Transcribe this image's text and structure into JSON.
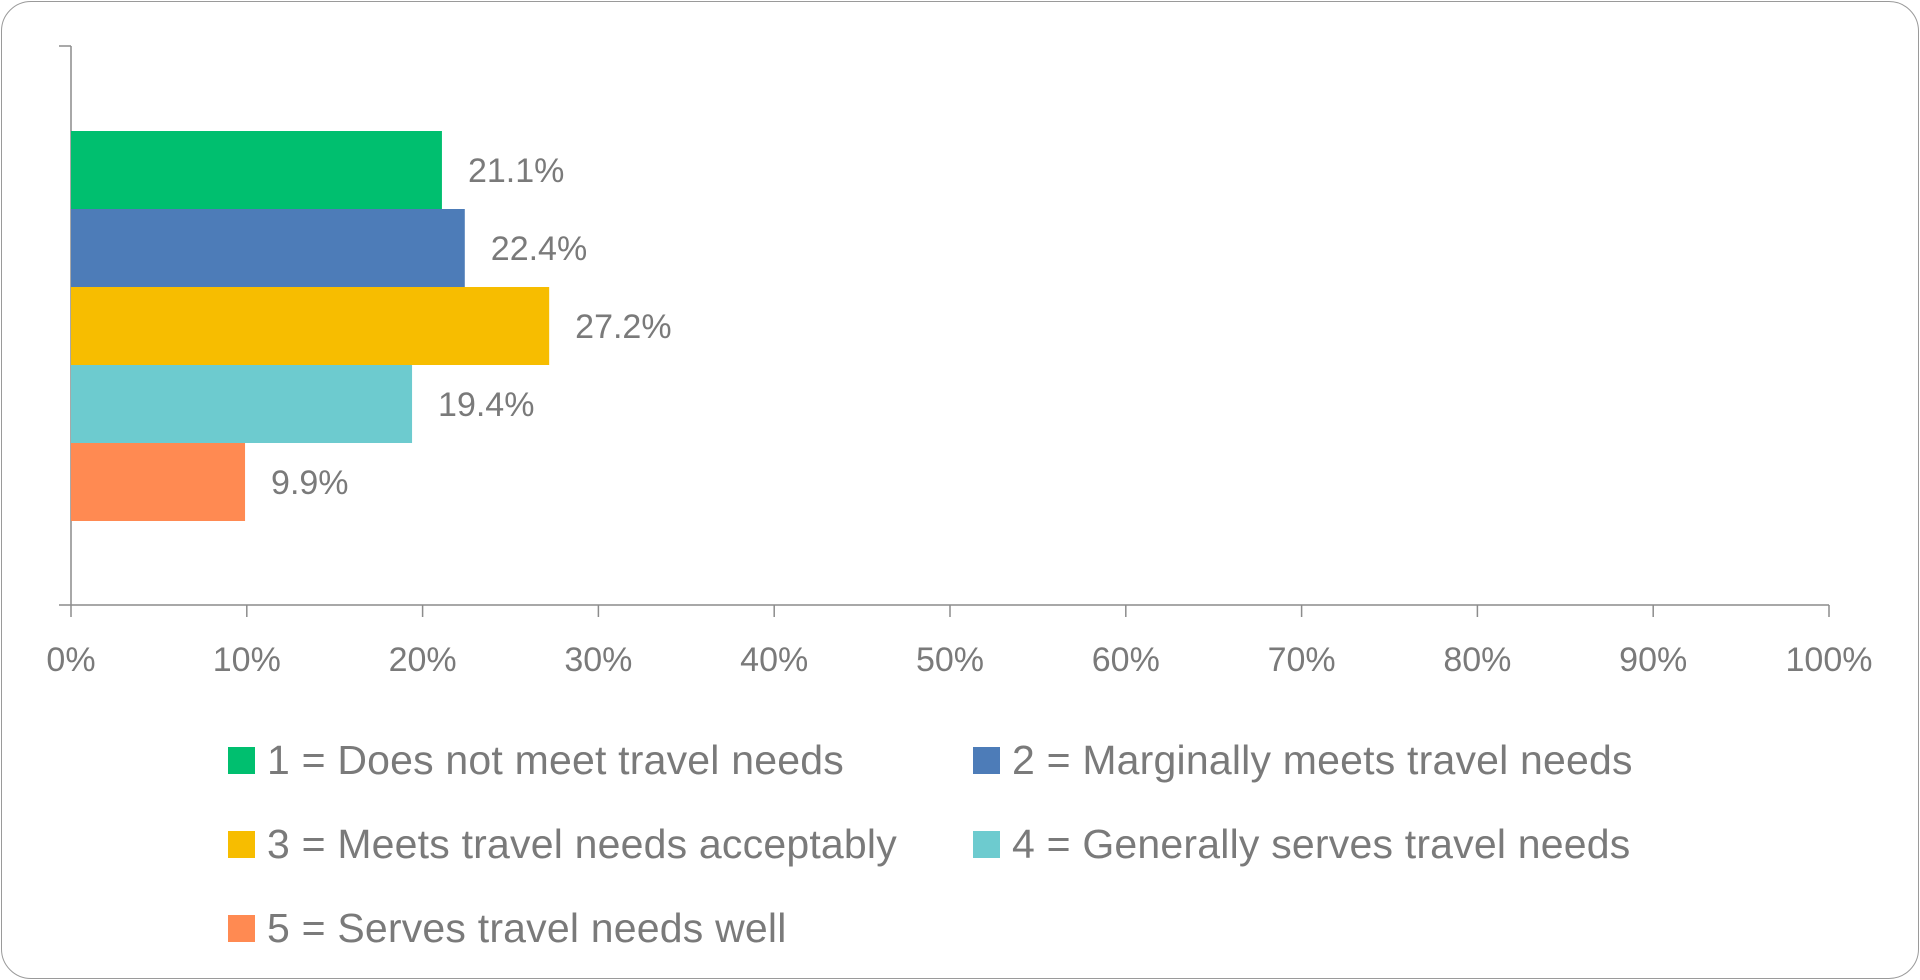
{
  "chart_data": {
    "type": "bar",
    "orientation": "horizontal",
    "title": "",
    "xlabel": "",
    "ylabel": "",
    "xlim": [
      0,
      100
    ],
    "x_ticks": [
      "0%",
      "10%",
      "20%",
      "30%",
      "40%",
      "50%",
      "60%",
      "70%",
      "80%",
      "90%",
      "100%"
    ],
    "grid": false,
    "legend_position": "bottom",
    "series": [
      {
        "name": "1 = Does not meet travel needs",
        "value": 21.1,
        "label": "21.1%",
        "color": "#00bf6f"
      },
      {
        "name": "2 = Marginally meets travel needs",
        "value": 22.4,
        "label": "22.4%",
        "color": "#4d7cb8"
      },
      {
        "name": "3 = Meets travel needs acceptably",
        "value": 27.2,
        "label": "27.2%",
        "color": "#f7bd00"
      },
      {
        "name": "4 = Generally serves travel needs",
        "value": 19.4,
        "label": "19.4%",
        "color": "#6dcbcf"
      },
      {
        "name": "5 = Serves travel needs well",
        "value": 9.9,
        "label": "9.9%",
        "color": "#ff8a52"
      }
    ]
  }
}
